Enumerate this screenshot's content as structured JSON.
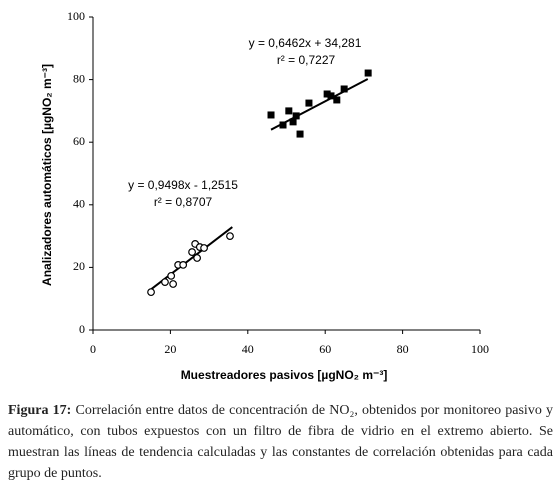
{
  "chart_data": {
    "type": "scatter",
    "xlabel": "Muestreadores pasivos [µgNO₂ m⁻³]",
    "ylabel": "Analizadores automáticos [µgNO₂ m⁻³]",
    "xlim": [
      0,
      100
    ],
    "xticks": [
      0,
      20,
      40,
      60,
      80,
      100
    ],
    "ylim": [
      0,
      100
    ],
    "yticks": [
      0,
      20,
      40,
      60,
      80,
      100
    ],
    "color": "#000000",
    "series": [
      {
        "marker": "square",
        "x": [
          46.0,
          49.1,
          50.6,
          51.7,
          52.5,
          53.5,
          55.8,
          60.5,
          61.5,
          63.0,
          64.9,
          71.1
        ],
        "values": [
          68.7,
          65.5,
          70.0,
          66.5,
          68.4,
          62.6,
          72.5,
          75.4,
          74.8,
          73.5,
          77.0,
          82.1
        ]
      },
      {
        "marker": "circle",
        "x": [
          15.0,
          18.6,
          20.2,
          20.7,
          22.0,
          23.3,
          25.6,
          26.4,
          26.9,
          27.6,
          28.7,
          35.4
        ],
        "values": [
          12.1,
          15.3,
          17.3,
          14.7,
          20.8,
          20.8,
          24.9,
          27.5,
          23.0,
          26.5,
          26.2,
          30.0
        ]
      }
    ],
    "trendlines": [
      {
        "x": [
          46,
          71
        ],
        "values": [
          64.0,
          80.2
        ]
      },
      {
        "x": [
          15,
          36
        ],
        "values": [
          13.0,
          32.9
        ]
      }
    ],
    "annotations": [
      "y = 0,6462x + 34,281",
      "r² = 0,7227",
      "y = 0,9498x - 1,2515",
      "r² = 0,8707"
    ]
  },
  "caption": {
    "label": "Figura 17:",
    "text": "Correlación entre datos de concentración de NO₂, obtenidos por monitoreo pasivo y automático, con tubos expuestos con un filtro de fibra de vidrio en el extremo abierto. Se muestran las líneas de tendencia calculadas y las constantes de correlación obtenidas para cada grupo de puntos."
  }
}
